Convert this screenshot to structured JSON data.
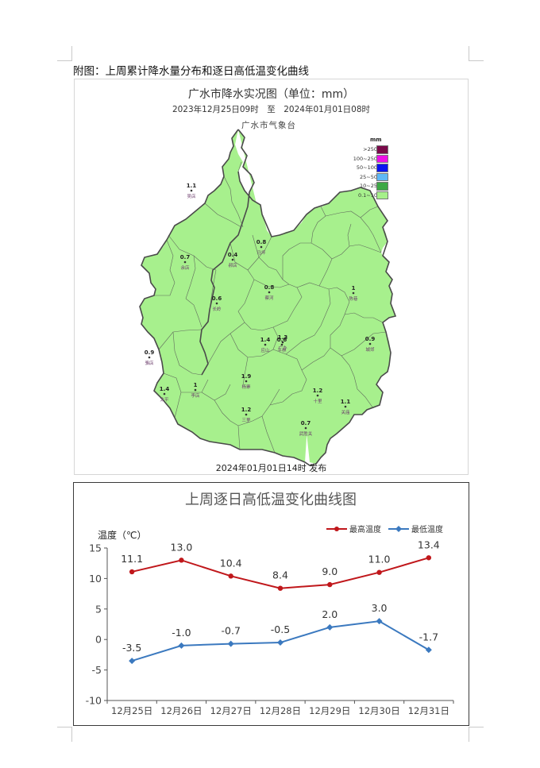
{
  "caption": "附图：上周累计降水量分布和逐日高低温变化曲线",
  "map": {
    "title": "广水市降水实况图（单位：mm）",
    "range": "2023年12月25日09时　至　2024年01月01日08时",
    "agency": "广水市气象台",
    "publish": "2024年01月01日14时 发布",
    "legend_unit": "mm",
    "legend": [
      {
        "label": ">250",
        "color": "#7a0a4a"
      },
      {
        "label": "100~250",
        "color": "#ee10e6"
      },
      {
        "label": "50~100",
        "color": "#0a14f0"
      },
      {
        "label": "25~50",
        "color": "#5fb8f5"
      },
      {
        "label": "10~25",
        "color": "#3da845"
      },
      {
        "label": "0.1~10",
        "color": "#a6f08a"
      }
    ],
    "stations": [
      {
        "value": "1.1",
        "name": "吴店"
      },
      {
        "value": "0.7",
        "name": "余店"
      },
      {
        "value": "0.4",
        "name": "郝店"
      },
      {
        "value": "0.8",
        "name": "马坪"
      },
      {
        "value": "0.8",
        "name": "蔡河"
      },
      {
        "value": "0.6",
        "name": "长岭"
      },
      {
        "value": "1",
        "name": "陈巷"
      },
      {
        "value": "0.6",
        "name": "平林"
      },
      {
        "value": "1.4",
        "name": "应山"
      },
      {
        "value": "1.3",
        "name": "广办"
      },
      {
        "value": "0.9",
        "name": "城郊"
      },
      {
        "value": "0.9",
        "name": "骆店"
      },
      {
        "value": "1",
        "name": "李店"
      },
      {
        "value": "1.9",
        "name": "杨寨"
      },
      {
        "value": "1.4",
        "name": "太平"
      },
      {
        "value": "1.2",
        "name": "十里"
      },
      {
        "value": "1.1",
        "name": "关庙"
      },
      {
        "value": "1.2",
        "name": "三里"
      },
      {
        "value": "0.7",
        "name": "武胜关"
      }
    ]
  },
  "chart_data": {
    "type": "line",
    "title": "上周逐日高低温变化曲线图",
    "ylabel": "温度（℃）",
    "xlabel": "",
    "categories": [
      "12月25日",
      "12月26日",
      "12月27日",
      "12月28日",
      "12月29日",
      "12月30日",
      "12月31日"
    ],
    "ylim": [
      -10,
      15
    ],
    "yticks": [
      -10,
      -5,
      0,
      5,
      10,
      15
    ],
    "grid": false,
    "legend_position": "top-right",
    "series": [
      {
        "name": "最高温度",
        "color": "#c0171b",
        "marker": "circle",
        "values": [
          11.1,
          13.0,
          10.4,
          8.4,
          9.0,
          11.0,
          13.4
        ],
        "labels": [
          "11.1",
          "13.0",
          "10.4",
          "8.4",
          "9.0",
          "11.0",
          "13.4"
        ]
      },
      {
        "name": "最低温度",
        "color": "#3b79bf",
        "marker": "diamond",
        "values": [
          -3.5,
          -1.0,
          -0.7,
          -0.5,
          2.0,
          3.0,
          -1.7
        ],
        "labels": [
          "-3.5",
          "-1.0",
          "-0.7",
          "-0.5",
          "2.0",
          "3.0",
          "-1.7"
        ]
      }
    ]
  }
}
